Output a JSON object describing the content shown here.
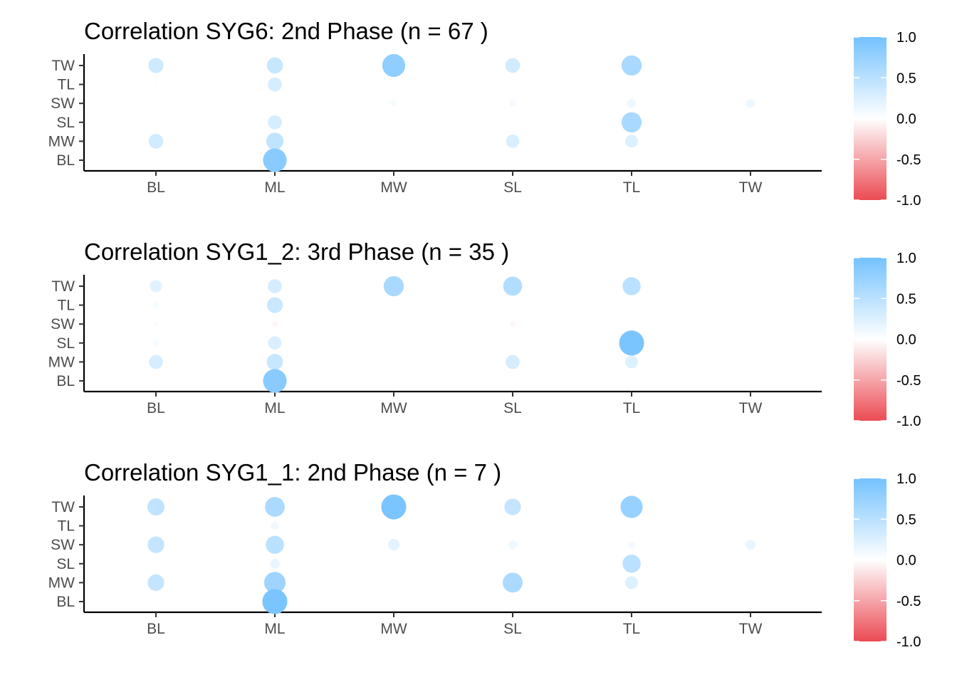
{
  "chart_data": [
    {
      "type": "scatter",
      "title": "Correlation SYG6: 2nd Phase (n = 67 )",
      "x_categories": [
        "BL",
        "ML",
        "MW",
        "SL",
        "TL",
        "TW"
      ],
      "y_categories": [
        "BL",
        "MW",
        "SL",
        "SW",
        "TL",
        "TW"
      ],
      "points": [
        {
          "x": "BL",
          "y": "TW",
          "r": 0.35
        },
        {
          "x": "BL",
          "y": "TL",
          "r": 0.03
        },
        {
          "x": "BL",
          "y": "MW",
          "r": 0.33
        },
        {
          "x": "ML",
          "y": "TW",
          "r": 0.4
        },
        {
          "x": "ML",
          "y": "TL",
          "r": 0.3
        },
        {
          "x": "ML",
          "y": "SL",
          "r": 0.3
        },
        {
          "x": "ML",
          "y": "MW",
          "r": 0.45
        },
        {
          "x": "ML",
          "y": "BL",
          "r": 0.85
        },
        {
          "x": "MW",
          "y": "TW",
          "r": 0.8
        },
        {
          "x": "MW",
          "y": "SW",
          "r": 0.07
        },
        {
          "x": "SL",
          "y": "TW",
          "r": 0.33
        },
        {
          "x": "SL",
          "y": "SW",
          "r": 0.08
        },
        {
          "x": "SL",
          "y": "MW",
          "r": 0.27
        },
        {
          "x": "TL",
          "y": "TW",
          "r": 0.62
        },
        {
          "x": "TL",
          "y": "SW",
          "r": 0.12
        },
        {
          "x": "TL",
          "y": "SL",
          "r": 0.62
        },
        {
          "x": "TL",
          "y": "MW",
          "r": 0.25
        },
        {
          "x": "TW",
          "y": "SW",
          "r": 0.12
        }
      ],
      "legend": {
        "ticks": [
          1.0,
          0.5,
          0.0,
          -0.5,
          -1.0
        ],
        "labels": [
          "1.0",
          "0.5",
          "0.0",
          "-0.5",
          "-1.0"
        ],
        "limits": [
          -1,
          1
        ],
        "placement": "right"
      },
      "grid": false
    },
    {
      "type": "scatter",
      "title": "Correlation SYG1_2: 3rd Phase (n = 35 )",
      "x_categories": [
        "BL",
        "ML",
        "MW",
        "SL",
        "TL",
        "TW"
      ],
      "y_categories": [
        "BL",
        "MW",
        "SL",
        "SW",
        "TL",
        "TW"
      ],
      "points": [
        {
          "x": "BL",
          "y": "TW",
          "r": 0.22
        },
        {
          "x": "BL",
          "y": "TL",
          "r": 0.07
        },
        {
          "x": "BL",
          "y": "SW",
          "r": -0.02
        },
        {
          "x": "BL",
          "y": "SL",
          "r": 0.07
        },
        {
          "x": "BL",
          "y": "MW",
          "r": 0.3
        },
        {
          "x": "ML",
          "y": "TW",
          "r": 0.3
        },
        {
          "x": "ML",
          "y": "TL",
          "r": 0.38
        },
        {
          "x": "ML",
          "y": "SW",
          "r": -0.05
        },
        {
          "x": "ML",
          "y": "SL",
          "r": 0.27
        },
        {
          "x": "ML",
          "y": "MW",
          "r": 0.4
        },
        {
          "x": "ML",
          "y": "BL",
          "r": 0.85
        },
        {
          "x": "MW",
          "y": "TW",
          "r": 0.62
        },
        {
          "x": "SL",
          "y": "TW",
          "r": 0.55
        },
        {
          "x": "SL",
          "y": "SW",
          "r": -0.05
        },
        {
          "x": "SL",
          "y": "MW",
          "r": 0.3
        },
        {
          "x": "TL",
          "y": "TW",
          "r": 0.5
        },
        {
          "x": "TL",
          "y": "SL",
          "r": 0.95
        },
        {
          "x": "TL",
          "y": "MW",
          "r": 0.25
        }
      ],
      "legend": {
        "ticks": [
          1.0,
          0.5,
          0.0,
          -0.5,
          -1.0
        ],
        "labels": [
          "1.0",
          "0.5",
          "0.0",
          "-0.5",
          "-1.0"
        ],
        "limits": [
          -1,
          1
        ],
        "placement": "right"
      },
      "grid": false
    },
    {
      "type": "scatter",
      "title": "Correlation SYG1_1: 2nd Phase (n = 7 )",
      "x_categories": [
        "BL",
        "ML",
        "MW",
        "SL",
        "TL",
        "TW"
      ],
      "y_categories": [
        "BL",
        "MW",
        "SL",
        "SW",
        "TL",
        "TW"
      ],
      "points": [
        {
          "x": "BL",
          "y": "TW",
          "r": 0.45
        },
        {
          "x": "BL",
          "y": "SW",
          "r": 0.42
        },
        {
          "x": "BL",
          "y": "MW",
          "r": 0.42
        },
        {
          "x": "ML",
          "y": "TW",
          "r": 0.6
        },
        {
          "x": "ML",
          "y": "TL",
          "r": 0.1
        },
        {
          "x": "ML",
          "y": "SW",
          "r": 0.5
        },
        {
          "x": "ML",
          "y": "SL",
          "r": 0.15
        },
        {
          "x": "ML",
          "y": "MW",
          "r": 0.7
        },
        {
          "x": "ML",
          "y": "BL",
          "r": 0.95
        },
        {
          "x": "MW",
          "y": "TW",
          "r": 0.95
        },
        {
          "x": "MW",
          "y": "SW",
          "r": 0.2
        },
        {
          "x": "SL",
          "y": "TW",
          "r": 0.42
        },
        {
          "x": "SL",
          "y": "SW",
          "r": 0.12
        },
        {
          "x": "SL",
          "y": "MW",
          "r": 0.6
        },
        {
          "x": "TL",
          "y": "TW",
          "r": 0.75
        },
        {
          "x": "TL",
          "y": "SW",
          "r": 0.08
        },
        {
          "x": "TL",
          "y": "SL",
          "r": 0.5
        },
        {
          "x": "TL",
          "y": "MW",
          "r": 0.25
        },
        {
          "x": "TW",
          "y": "SW",
          "r": 0.15
        }
      ],
      "legend": {
        "ticks": [
          1.0,
          0.5,
          0.0,
          -0.5,
          -1.0
        ],
        "labels": [
          "1.0",
          "0.5",
          "0.0",
          "-0.5",
          "-1.0"
        ],
        "limits": [
          -1,
          1
        ],
        "placement": "right"
      },
      "grid": false
    }
  ],
  "colors": {
    "positive": "#74c2ff",
    "neutral": "#ffffff",
    "negative": "#eb4b53",
    "axis": "#000000",
    "tick_label": "#4d4d4d"
  }
}
